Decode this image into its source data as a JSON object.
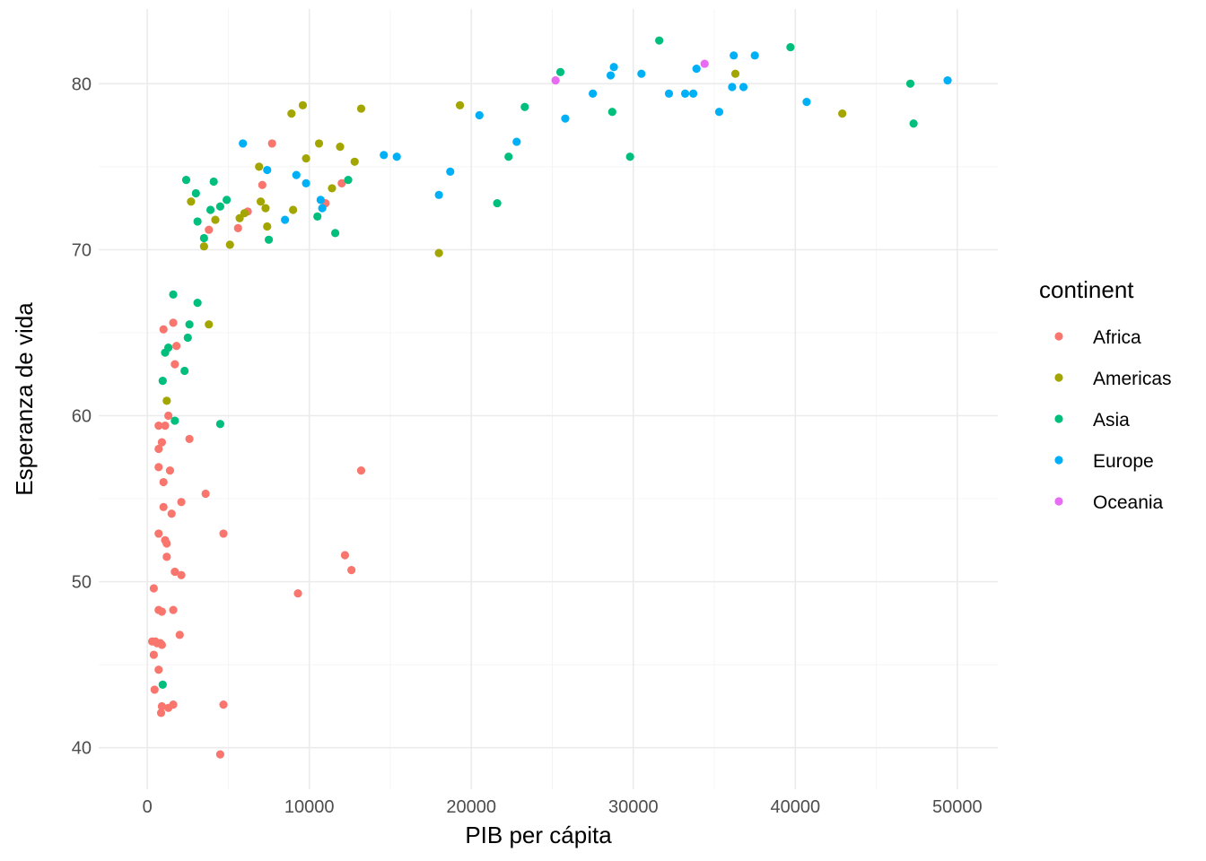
{
  "chart_data": {
    "type": "scatter",
    "title": "",
    "xlabel": "PIB per cápita",
    "ylabel": "Esperanza de vida",
    "xlim": [
      -3000,
      52500
    ],
    "ylim": [
      37.5,
      84.5
    ],
    "xticks": [
      0,
      10000,
      20000,
      30000,
      40000,
      50000
    ],
    "xtick_labels": [
      "0",
      "10000",
      "20000",
      "30000",
      "40000",
      "50000"
    ],
    "yticks": [
      40,
      50,
      60,
      70,
      80
    ],
    "ytick_labels": [
      "40",
      "50",
      "60",
      "70",
      "80"
    ],
    "grid": true,
    "legend": {
      "title": "continent",
      "position": "right"
    },
    "series": [
      {
        "name": "Africa",
        "color": "#F8766D",
        "points": [
          [
            300,
            46.4
          ],
          [
            500,
            46.4
          ],
          [
            400,
            45.6
          ],
          [
            700,
            44.7
          ],
          [
            450,
            43.5
          ],
          [
            400,
            49.6
          ],
          [
            700,
            48.3
          ],
          [
            900,
            48.2
          ],
          [
            800,
            46.3
          ],
          [
            900,
            46.2
          ],
          [
            600,
            46.3
          ],
          [
            900,
            42.5
          ],
          [
            850,
            42.1
          ],
          [
            1300,
            42.4
          ],
          [
            1600,
            42.6
          ],
          [
            1200,
            51.5
          ],
          [
            1200,
            52.3
          ],
          [
            1100,
            52.5
          ],
          [
            700,
            52.9
          ],
          [
            1000,
            54.5
          ],
          [
            1500,
            54.1
          ],
          [
            1400,
            56.7
          ],
          [
            1000,
            56.0
          ],
          [
            700,
            56.9
          ],
          [
            700,
            58.0
          ],
          [
            900,
            58.4
          ],
          [
            700,
            59.4
          ],
          [
            1100,
            59.4
          ],
          [
            1300,
            60.0
          ],
          [
            1700,
            63.1
          ],
          [
            1800,
            64.2
          ],
          [
            1000,
            65.2
          ],
          [
            1600,
            65.6
          ],
          [
            1700,
            50.6
          ],
          [
            2100,
            50.4
          ],
          [
            2100,
            54.8
          ],
          [
            2600,
            58.6
          ],
          [
            1600,
            48.3
          ],
          [
            2000,
            46.8
          ],
          [
            3600,
            55.3
          ],
          [
            4700,
            52.9
          ],
          [
            4700,
            42.6
          ],
          [
            4500,
            39.6
          ],
          [
            3800,
            71.2
          ],
          [
            5600,
            71.3
          ],
          [
            6200,
            72.3
          ],
          [
            7100,
            73.9
          ],
          [
            7700,
            76.4
          ],
          [
            9300,
            49.3
          ],
          [
            11000,
            72.8
          ],
          [
            12000,
            74.0
          ],
          [
            12200,
            51.6
          ],
          [
            12600,
            50.7
          ],
          [
            13200,
            56.7
          ]
        ]
      },
      {
        "name": "Americas",
        "color": "#A3A500",
        "points": [
          [
            1200,
            60.9
          ],
          [
            2700,
            72.9
          ],
          [
            3500,
            70.2
          ],
          [
            3800,
            65.5
          ],
          [
            4200,
            71.8
          ],
          [
            5100,
            70.3
          ],
          [
            5700,
            71.9
          ],
          [
            6000,
            72.2
          ],
          [
            6900,
            75.0
          ],
          [
            7000,
            72.9
          ],
          [
            7300,
            72.5
          ],
          [
            7400,
            71.4
          ],
          [
            8900,
            78.2
          ],
          [
            9000,
            72.4
          ],
          [
            9600,
            78.7
          ],
          [
            9800,
            75.5
          ],
          [
            10600,
            76.4
          ],
          [
            11400,
            73.7
          ],
          [
            11900,
            76.2
          ],
          [
            12800,
            75.3
          ],
          [
            13200,
            78.5
          ],
          [
            18000,
            69.8
          ],
          [
            19300,
            78.7
          ],
          [
            36300,
            80.6
          ],
          [
            42900,
            78.2
          ]
        ]
      },
      {
        "name": "Asia",
        "color": "#00BF7D",
        "points": [
          [
            950,
            43.8
          ],
          [
            950,
            62.1
          ],
          [
            1100,
            63.8
          ],
          [
            1300,
            64.1
          ],
          [
            1600,
            67.3
          ],
          [
            1700,
            59.7
          ],
          [
            2300,
            62.7
          ],
          [
            2500,
            64.7
          ],
          [
            2600,
            65.5
          ],
          [
            2400,
            74.2
          ],
          [
            3000,
            73.4
          ],
          [
            3100,
            66.8
          ],
          [
            3100,
            71.7
          ],
          [
            3500,
            70.7
          ],
          [
            3900,
            72.4
          ],
          [
            4100,
            74.1
          ],
          [
            4500,
            72.6
          ],
          [
            4500,
            59.5
          ],
          [
            4900,
            73.0
          ],
          [
            7500,
            70.6
          ],
          [
            10500,
            72.0
          ],
          [
            11600,
            71.0
          ],
          [
            12400,
            74.2
          ],
          [
            21600,
            72.8
          ],
          [
            22300,
            75.6
          ],
          [
            23300,
            78.6
          ],
          [
            25500,
            80.7
          ],
          [
            28700,
            78.3
          ],
          [
            29800,
            75.6
          ],
          [
            31600,
            82.6
          ],
          [
            39700,
            82.2
          ],
          [
            47100,
            80.0
          ],
          [
            47300,
            77.6
          ]
        ]
      },
      {
        "name": "Europe",
        "color": "#00B0F6",
        "points": [
          [
            5900,
            76.4
          ],
          [
            7400,
            74.8
          ],
          [
            8500,
            71.8
          ],
          [
            9200,
            74.5
          ],
          [
            9800,
            74.0
          ],
          [
            10700,
            73.0
          ],
          [
            10800,
            72.5
          ],
          [
            14600,
            75.7
          ],
          [
            15400,
            75.6
          ],
          [
            18000,
            73.3
          ],
          [
            18700,
            74.7
          ],
          [
            20500,
            78.1
          ],
          [
            22800,
            76.5
          ],
          [
            25800,
            77.9
          ],
          [
            27500,
            79.4
          ],
          [
            28600,
            80.5
          ],
          [
            28800,
            81.0
          ],
          [
            30500,
            80.6
          ],
          [
            32200,
            79.4
          ],
          [
            33200,
            79.4
          ],
          [
            33700,
            79.4
          ],
          [
            33900,
            80.9
          ],
          [
            35300,
            78.3
          ],
          [
            36100,
            79.8
          ],
          [
            36200,
            81.7
          ],
          [
            36800,
            79.8
          ],
          [
            37500,
            81.7
          ],
          [
            40700,
            78.9
          ],
          [
            49400,
            80.2
          ]
        ]
      },
      {
        "name": "Oceania",
        "color": "#E76BF3",
        "points": [
          [
            25200,
            80.2
          ],
          [
            34400,
            81.2
          ]
        ]
      }
    ]
  }
}
